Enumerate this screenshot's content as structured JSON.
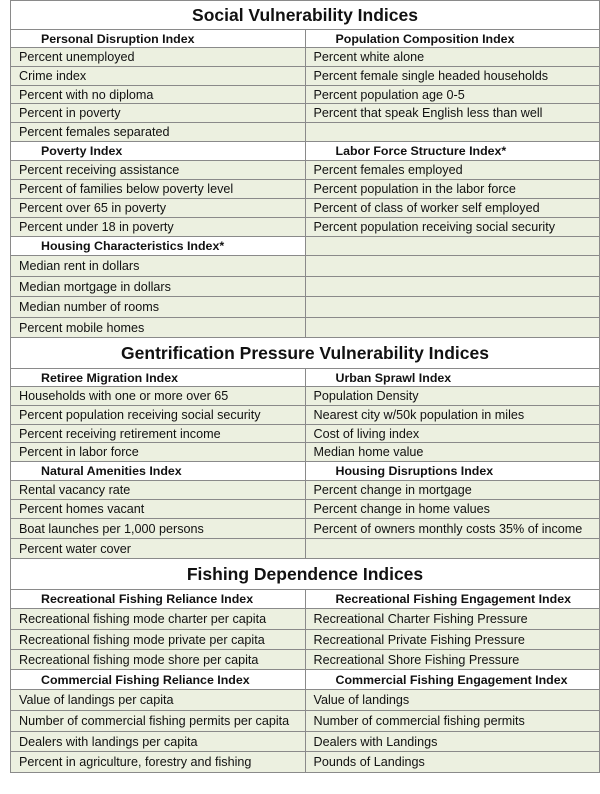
{
  "sections": [
    {
      "title": "Social Vulnerability Indices",
      "rows": [
        {
          "type": "sub",
          "left": "Personal Disruption Index",
          "right": "Population Composition Index"
        },
        {
          "type": "item",
          "left": "Percent unemployed",
          "right": "Percent white alone"
        },
        {
          "type": "item",
          "left": "Crime index",
          "right": "Percent female single headed households"
        },
        {
          "type": "item",
          "left": "Percent with no diploma",
          "right": "Percent population age 0-5"
        },
        {
          "type": "item",
          "left": "Percent in poverty",
          "right": "Percent that speak English less than well"
        },
        {
          "type": "item",
          "left": "Percent females separated",
          "right": ""
        },
        {
          "type": "sub",
          "left": "Poverty Index",
          "right": "Labor Force Structure Index*"
        },
        {
          "type": "item",
          "left": "Percent receiving assistance",
          "right": "Percent females employed"
        },
        {
          "type": "item",
          "left": "Percent of families below poverty level",
          "right": "Percent population in the labor force"
        },
        {
          "type": "item",
          "left": "Percent over 65 in poverty",
          "right": "Percent of class of worker self employed"
        },
        {
          "type": "item",
          "left": "Percent under 18 in poverty",
          "right": "Percent population receiving social security"
        },
        {
          "type": "sub",
          "left": "Housing Characteristics Index*",
          "right": ""
        },
        {
          "type": "item",
          "left": "Median rent in dollars",
          "right": ""
        },
        {
          "type": "item",
          "left": "Median mortgage in dollars",
          "right": ""
        },
        {
          "type": "item",
          "left": "Median number of rooms",
          "right": ""
        },
        {
          "type": "item",
          "left": "Percent mobile homes",
          "right": ""
        }
      ]
    },
    {
      "title": "Gentrification Pressure Vulnerability Indices",
      "rows": [
        {
          "type": "sub",
          "left": "Retiree Migration Index",
          "right": "Urban Sprawl Index"
        },
        {
          "type": "item",
          "left": "Households with one or more over 65",
          "right": "Population Density"
        },
        {
          "type": "item",
          "left": "Percent population receiving social security",
          "right": "Nearest city w/50k population in miles"
        },
        {
          "type": "item",
          "left": "Percent receiving retirement income",
          "right": "Cost of living index"
        },
        {
          "type": "item",
          "left": "Percent in labor force",
          "right": "Median home value"
        },
        {
          "type": "sub",
          "left": "Natural Amenities Index",
          "right": "Housing Disruptions Index"
        },
        {
          "type": "item",
          "left": "Rental vacancy rate",
          "right": "Percent change in mortgage"
        },
        {
          "type": "item",
          "left": "Percent homes vacant",
          "right": "Percent change in home values"
        },
        {
          "type": "item",
          "left": "Boat launches per 1,000 persons",
          "right": "Percent of owners monthly costs 35% of income"
        },
        {
          "type": "item",
          "left": "Percent water cover",
          "right": ""
        }
      ]
    },
    {
      "title": "Fishing Dependence Indices",
      "rows": [
        {
          "type": "sub",
          "left": "Recreational Fishing Reliance Index",
          "right": "Recreational Fishing Engagement Index"
        },
        {
          "type": "item",
          "left": "Recreational fishing mode charter per capita",
          "right": "Recreational Charter Fishing Pressure"
        },
        {
          "type": "item",
          "left": "Recreational fishing mode private per capita",
          "right": "Recreational Private Fishing Pressure"
        },
        {
          "type": "item",
          "left": "Recreational fishing mode shore per capita",
          "right": "Recreational Shore Fishing Pressure"
        },
        {
          "type": "sub",
          "left": "Commercial Fishing Reliance Index",
          "right": "Commercial Fishing Engagement Index"
        },
        {
          "type": "item",
          "left": "Value of landings per capita",
          "right": "Value of landings"
        },
        {
          "type": "item",
          "left": "Number of commercial fishing permits per capita",
          "right": "Number of commercial fishing permits"
        },
        {
          "type": "item",
          "left": "Dealers with landings per capita",
          "right": "Dealers with Landings"
        },
        {
          "type": "item",
          "left": "Percent in agriculture, forestry and fishing",
          "right": "Pounds of Landings"
        }
      ]
    }
  ]
}
